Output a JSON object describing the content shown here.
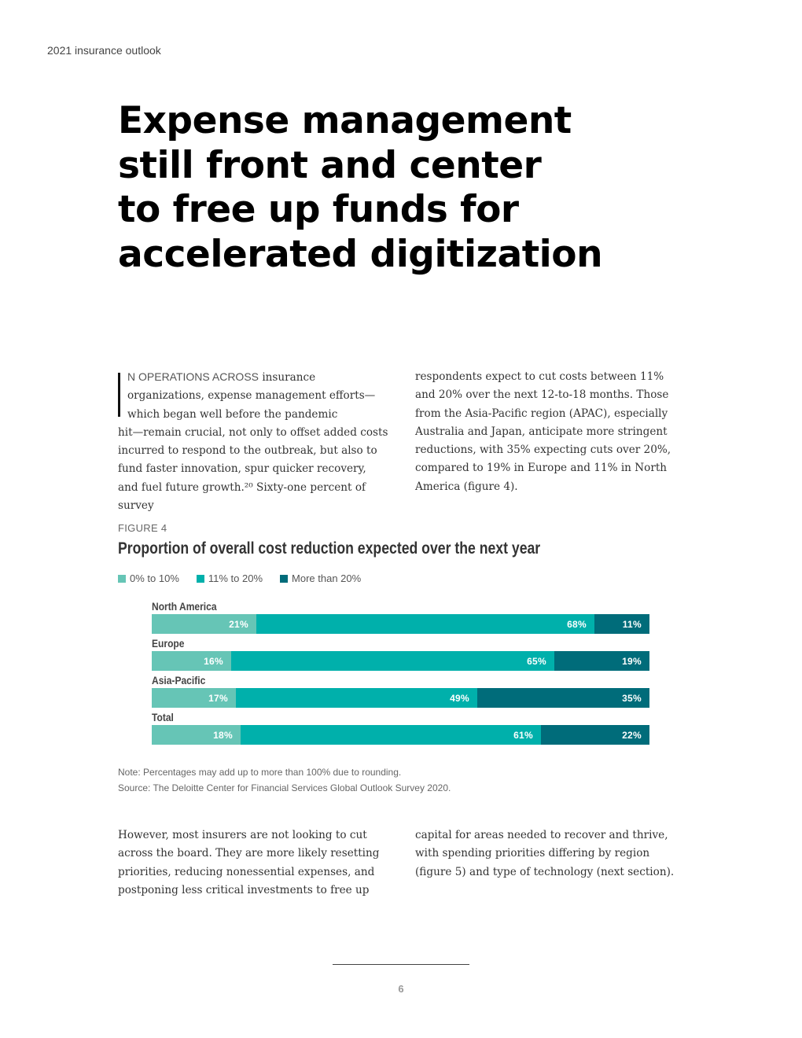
{
  "header": {
    "running_title": "2021 insurance outlook"
  },
  "article": {
    "title_lines": [
      "Expense management",
      "still front and center",
      "to free up funds for",
      "accelerated digitization"
    ],
    "intro_col1": {
      "lead": "N OPERATIONS ACROSS",
      "line1_rest": " insurance",
      "line2": "organizations, expense management efforts—",
      "line3": "which began well before the pandemic",
      "rest": "hit—remain crucial, not only to offset added costs incurred to respond to the outbreak, but also to fund faster innovation, spur quicker recovery, and fuel future growth.²⁰ Sixty-one percent of survey"
    },
    "intro_col2": "respondents expect to cut costs between 11% and 20% over the next 12-to-18 months. Those from the Asia-Pacific region (APAC), especially Australia and Japan, anticipate more stringent reductions, with 35% expecting cuts over 20%, compared to 19% in Europe and 11% in North America (figure 4).",
    "outro_col1": "However, most insurers are not looking to cut across the board. They are more likely resetting priorities, reducing nonessential expenses, and postponing less critical investments to free up",
    "outro_col2": "capital for areas needed to recover and thrive, with spending priorities differing by region (figure 5) and type of technology (next section)."
  },
  "figure": {
    "label": "FIGURE 4",
    "title": "Proportion of overall cost reduction expected over the next year",
    "note": "Note: Percentages may add up to more than 100% due to rounding.",
    "source": "Source: The Deloitte Center for Financial Services Global Outlook Survey 2020."
  },
  "chart_data": {
    "type": "bar",
    "orientation": "horizontal",
    "stacked": true,
    "title": "Proportion of overall cost reduction expected over the next year",
    "categories": [
      "North America",
      "Europe",
      "Asia-Pacific",
      "Total"
    ],
    "series": [
      {
        "name": "0% to 10%",
        "values": [
          21,
          16,
          17,
          18
        ],
        "labels": [
          "21%",
          "16%",
          "17%",
          "18%"
        ],
        "color": "#66c5b6"
      },
      {
        "name": "11% to 20%",
        "values": [
          68,
          65,
          49,
          61
        ],
        "labels": [
          "68%",
          "65%",
          "49%",
          "61%"
        ],
        "color": "#00b0ab"
      },
      {
        "name": "More than 20%",
        "values": [
          11,
          19,
          35,
          22
        ],
        "labels": [
          "11%",
          "19%",
          "35%",
          "22%"
        ],
        "color": "#006c7a"
      }
    ],
    "legend_position": "top-left",
    "grid": false,
    "axes_visible": false
  },
  "footer": {
    "page_number": "6"
  }
}
